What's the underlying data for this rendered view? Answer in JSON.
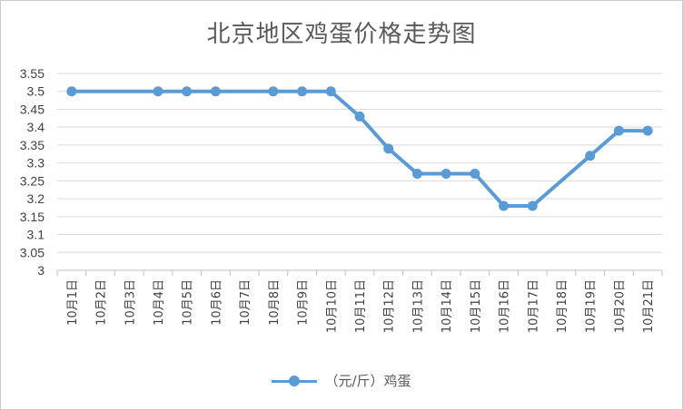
{
  "chart_data": {
    "type": "line",
    "title": "北京地区鸡蛋价格走势图",
    "xlabel": "",
    "ylabel": "",
    "categories": [
      "10月1日",
      "10月2日",
      "10月3日",
      "10月4日",
      "10月5日",
      "10月6日",
      "10月7日",
      "10月8日",
      "10月9日",
      "10月10日",
      "10月11日",
      "10月12日",
      "10月13日",
      "10月14日",
      "10月15日",
      "10月16日",
      "10月17日",
      "10月18日",
      "10月19日",
      "10月20日",
      "10月21日"
    ],
    "series": [
      {
        "name": "（元/斤）鸡蛋",
        "values": [
          3.5,
          null,
          null,
          3.5,
          3.5,
          3.5,
          null,
          3.5,
          3.5,
          3.5,
          3.43,
          3.34,
          3.27,
          3.27,
          3.27,
          3.18,
          3.18,
          null,
          3.32,
          3.39,
          3.39
        ]
      }
    ],
    "ylim": [
      3,
      3.55
    ],
    "yticks": [
      "3",
      "3.05",
      "3.1",
      "3.15",
      "3.2",
      "3.25",
      "3.3",
      "3.35",
      "3.4",
      "3.45",
      "3.5",
      "3.55"
    ],
    "grid": true,
    "legend": "bottom",
    "color": "#5b9bd5"
  }
}
